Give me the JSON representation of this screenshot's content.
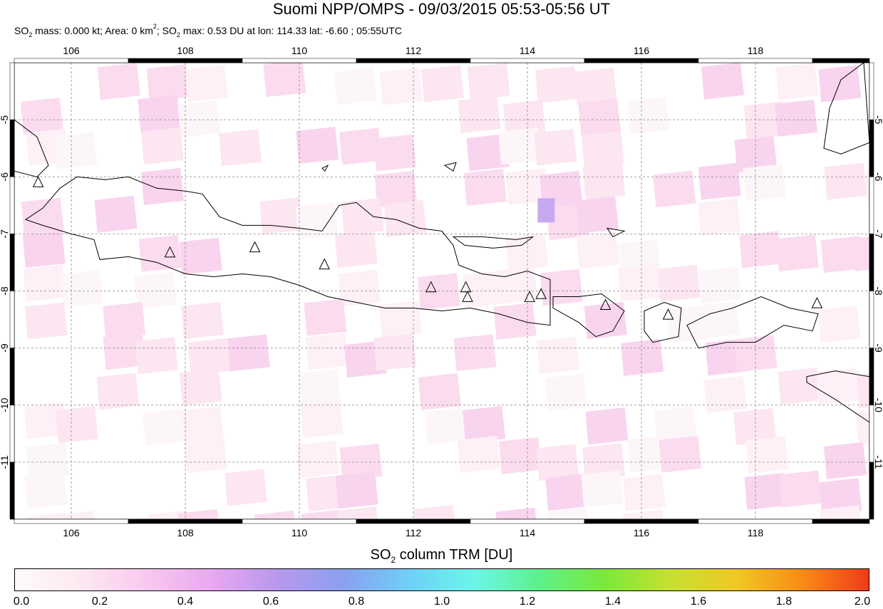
{
  "header": {
    "title": "Suomi NPP/OMPS - 09/03/2015 05:53-05:56 UT",
    "subtitle_parts": [
      "SO",
      "2",
      " mass: 0.000 kt; Area: 0 km",
      "2",
      "; SO",
      "2",
      " max: 0.53 DU at lon: 114.33 lat: -6.60 ; 05:55UTC"
    ]
  },
  "map": {
    "lon_range": [
      105.0,
      120.0
    ],
    "lat_range": [
      -12.0,
      -4.0
    ],
    "lon_ticks": [
      "106",
      "108",
      "110",
      "112",
      "114",
      "116",
      "118"
    ],
    "lat_ticks": [
      "-5",
      "-6",
      "-7",
      "-8",
      "-9",
      "-10",
      "-11"
    ],
    "gridlines": true,
    "volcanoes": [
      {
        "lon": 105.42,
        "lat": -6.1
      },
      {
        "lon": 107.73,
        "lat": -7.33
      },
      {
        "lon": 109.22,
        "lat": -7.24
      },
      {
        "lon": 110.44,
        "lat": -7.54
      },
      {
        "lon": 112.31,
        "lat": -7.94
      },
      {
        "lon": 112.92,
        "lat": -7.94
      },
      {
        "lon": 112.95,
        "lat": -8.11
      },
      {
        "lon": 114.04,
        "lat": -8.11
      },
      {
        "lon": 114.24,
        "lat": -8.06
      },
      {
        "lon": 115.37,
        "lat": -8.25
      },
      {
        "lon": 116.47,
        "lat": -8.42
      },
      {
        "lon": 119.08,
        "lat": -8.22
      }
    ],
    "max_pixel": {
      "lon": 114.33,
      "lat": -6.6,
      "value": 0.53
    }
  },
  "colorbar": {
    "title_main": "SO",
    "title_sub": "2",
    "title_rest": " column TRM [DU]",
    "ticks": [
      "0.0",
      "0.2",
      "0.4",
      "0.6",
      "0.8",
      "1.0",
      "1.2",
      "1.4",
      "1.6",
      "1.8",
      "2.0"
    ],
    "colors": [
      "#fefafa",
      "#fde8f2",
      "#f9c8ee",
      "#e8a8f0",
      "#b898ee",
      "#8aa0f0",
      "#6ecff8",
      "#6cf5e8",
      "#5ef08a",
      "#7ce83a",
      "#c8e030",
      "#f0c820",
      "#f88a18",
      "#f03a18"
    ]
  }
}
